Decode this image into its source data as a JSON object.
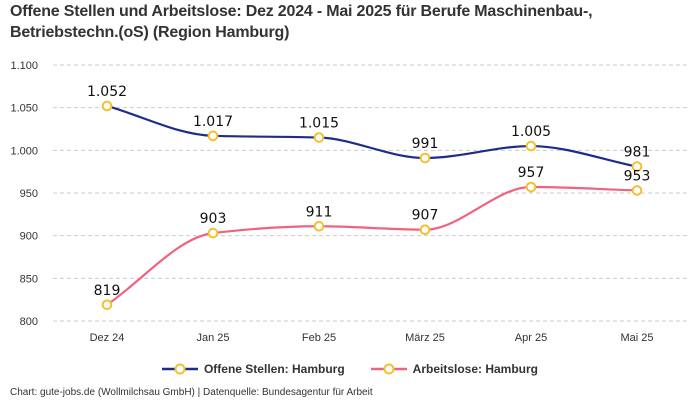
{
  "title": "Offene Stellen und Arbeitslose: Dez 2024 - Mai 2025 für Berufe Maschinenbau-, Betriebstechn.(oS) (Region Hamburg)",
  "footer": "Chart: gute-jobs.de (Wollmilchsau GmbH) | Datenquelle: Bundesagentur für Arbeit",
  "colors": {
    "offene_stellen": "#1f2d8a",
    "arbeitslose": "#f0637f",
    "marker": "#f5c030"
  },
  "chart_data": {
    "type": "line",
    "title": "Offene Stellen und Arbeitslose: Dez 2024 - Mai 2025 für Berufe Maschinenbau-, Betriebstechn.(oS) (Region Hamburg)",
    "xlabel": "",
    "ylabel": "",
    "categories": [
      "Dez 24",
      "Jan 25",
      "Feb 25",
      "März 25",
      "Apr 25",
      "Mai 25"
    ],
    "ylim": [
      800,
      1100
    ],
    "yticks": [
      800,
      850,
      900,
      950,
      1000,
      1050,
      1100
    ],
    "ytick_labels": [
      "800",
      "850",
      "900",
      "950",
      "1.000",
      "1.050",
      "1.100"
    ],
    "grid": true,
    "legend_position": "bottom",
    "series": [
      {
        "name": "Offene Stellen: Hamburg",
        "values": [
          1052,
          1017,
          1015,
          991,
          1005,
          981
        ],
        "labels": [
          "1.052",
          "1.017",
          "1.015",
          "991",
          "1.005",
          "981"
        ]
      },
      {
        "name": "Arbeitslose: Hamburg",
        "values": [
          819,
          903,
          911,
          907,
          957,
          953
        ],
        "labels": [
          "819",
          "903",
          "911",
          "907",
          "957",
          "953"
        ]
      }
    ]
  }
}
